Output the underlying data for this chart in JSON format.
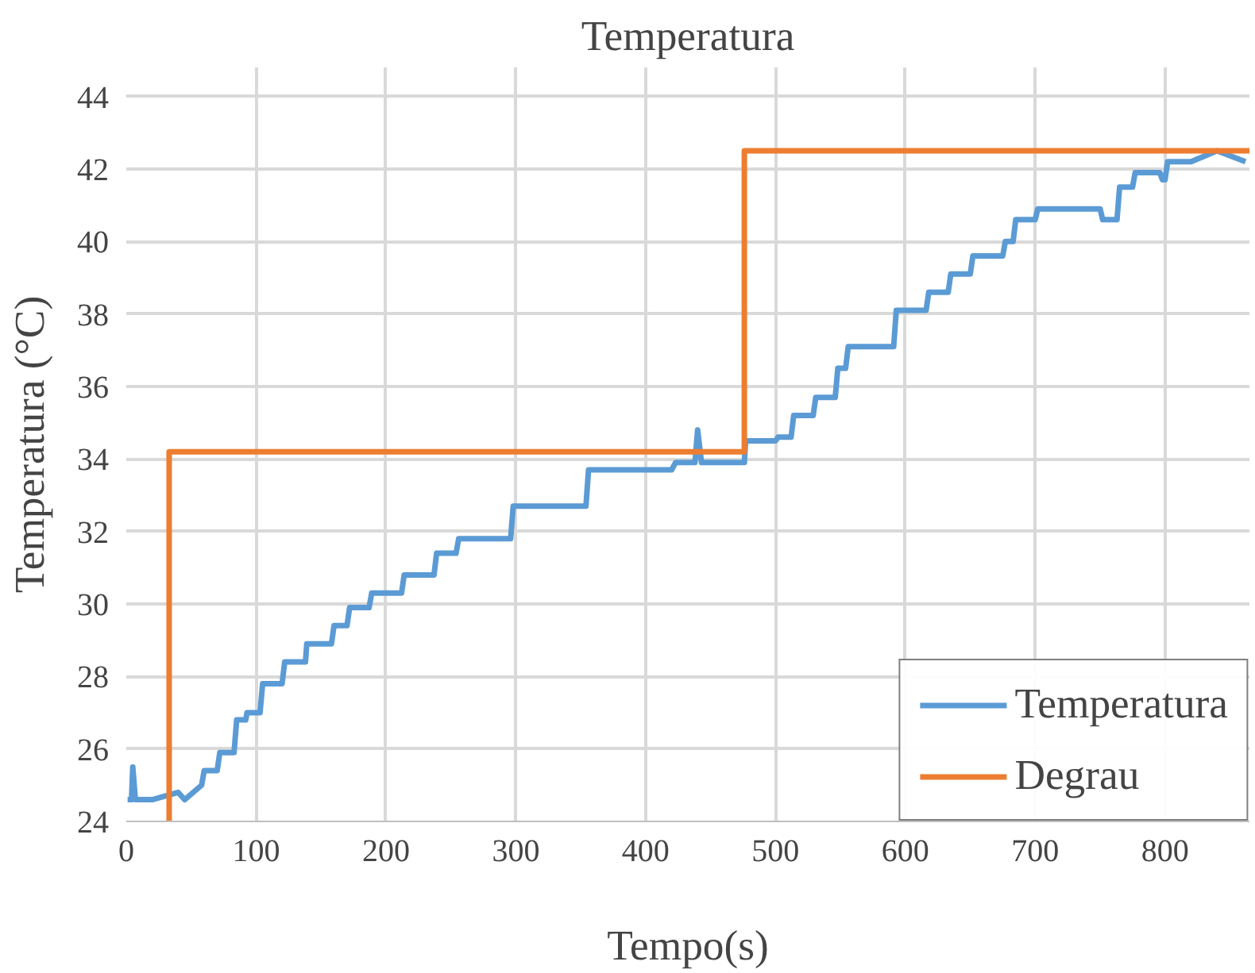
{
  "chart_data": {
    "type": "line",
    "title": "Temperatura",
    "xlabel": "Tempo(s)",
    "ylabel": "Temperatura (°C)",
    "xlim": [
      0,
      865
    ],
    "ylim": [
      24,
      44.8
    ],
    "xticks": [
      0,
      100,
      200,
      300,
      400,
      500,
      600,
      700,
      800
    ],
    "yticks": [
      24,
      26,
      28,
      30,
      32,
      34,
      36,
      38,
      40,
      42,
      44
    ],
    "grid": true,
    "legend": "bottom right",
    "line_style": "solid",
    "marker": "none",
    "series": [
      {
        "name": "Temperatura",
        "color": "#5b9bd5",
        "x": [
          1,
          4,
          5,
          7,
          20,
          40,
          45,
          58,
          60,
          70,
          72,
          83,
          85,
          92,
          93,
          103,
          105,
          120,
          122,
          138,
          139,
          158,
          160,
          170,
          172,
          187,
          189,
          212,
          214,
          237,
          239,
          254,
          256,
          296,
          298,
          354,
          356,
          420,
          423,
          438,
          440,
          443,
          446,
          476,
          477,
          500,
          502,
          512,
          514,
          529,
          531,
          546,
          548,
          554,
          556,
          591,
          593,
          616,
          618,
          633,
          635,
          650,
          652,
          675,
          677,
          683,
          685,
          700,
          702,
          750,
          752,
          763,
          765,
          775,
          777,
          796,
          798,
          800,
          802,
          820,
          840,
          862
        ],
        "values": [
          24.6,
          24.6,
          25.5,
          24.6,
          24.6,
          24.8,
          24.6,
          25.0,
          25.4,
          25.4,
          25.9,
          25.9,
          26.8,
          26.8,
          27.0,
          27.0,
          27.8,
          27.8,
          28.4,
          28.4,
          28.9,
          28.9,
          29.4,
          29.4,
          29.9,
          29.9,
          30.3,
          30.3,
          30.8,
          30.8,
          31.4,
          31.4,
          31.8,
          31.8,
          32.7,
          32.7,
          33.7,
          33.7,
          33.9,
          33.9,
          34.8,
          33.9,
          33.9,
          33.9,
          34.5,
          34.5,
          34.6,
          34.6,
          35.2,
          35.2,
          35.7,
          35.7,
          36.5,
          36.5,
          37.1,
          37.1,
          38.1,
          38.1,
          38.6,
          38.6,
          39.1,
          39.1,
          39.6,
          39.6,
          40.0,
          40.0,
          40.6,
          40.6,
          40.9,
          40.9,
          40.6,
          40.6,
          41.5,
          41.5,
          41.9,
          41.9,
          41.7,
          41.7,
          42.2,
          42.2,
          42.5,
          42.2
        ]
      },
      {
        "name": "Degrau",
        "color": "#ed7d31",
        "x": [
          33,
          33,
          476,
          476,
          865
        ],
        "values": [
          24,
          34.2,
          34.2,
          42.5,
          42.5
        ]
      }
    ]
  }
}
